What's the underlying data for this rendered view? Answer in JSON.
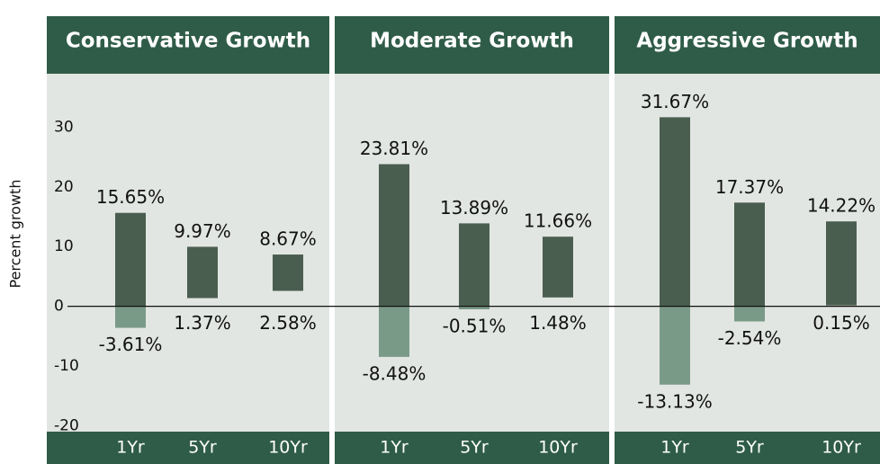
{
  "chart_data": {
    "type": "range-bar",
    "y_label": "Percent growth",
    "ylim": [
      -21,
      37
    ],
    "yticks": [
      -20,
      -10,
      0,
      10,
      20,
      30
    ],
    "color": "#4a5e50",
    "negative_color": "#7a9a88",
    "panel_color": "#e2e6e2",
    "header_color": "#2f5c48",
    "panels": [
      {
        "title": "Conservative Growth",
        "categories": [
          "1Yr",
          "5Yr",
          "10Yr"
        ],
        "highs": [
          15.65,
          9.97,
          8.67
        ],
        "high_labels": [
          "15.65%",
          "9.97%",
          "8.67%"
        ],
        "lows": [
          -3.61,
          1.37,
          2.58
        ],
        "low_labels": [
          "-3.61%",
          "1.37%",
          "2.58%"
        ]
      },
      {
        "title": "Moderate Growth",
        "categories": [
          "1Yr",
          "5Yr",
          "10Yr"
        ],
        "highs": [
          23.81,
          13.89,
          11.66
        ],
        "high_labels": [
          "23.81%",
          "13.89%",
          "11.66%"
        ],
        "lows": [
          -8.48,
          -0.51,
          1.48
        ],
        "low_labels": [
          "-8.48%",
          "-0.51%",
          "1.48%"
        ]
      },
      {
        "title": "Aggressive Growth",
        "categories": [
          "1Yr",
          "5Yr",
          "10Yr"
        ],
        "highs": [
          31.67,
          17.37,
          14.22
        ],
        "high_labels": [
          "31.67%",
          "17.37%",
          "14.22%"
        ],
        "lows": [
          -13.13,
          -2.54,
          0.15
        ],
        "low_labels": [
          "-13.13%",
          "-2.54%",
          "0.15%"
        ]
      }
    ]
  }
}
